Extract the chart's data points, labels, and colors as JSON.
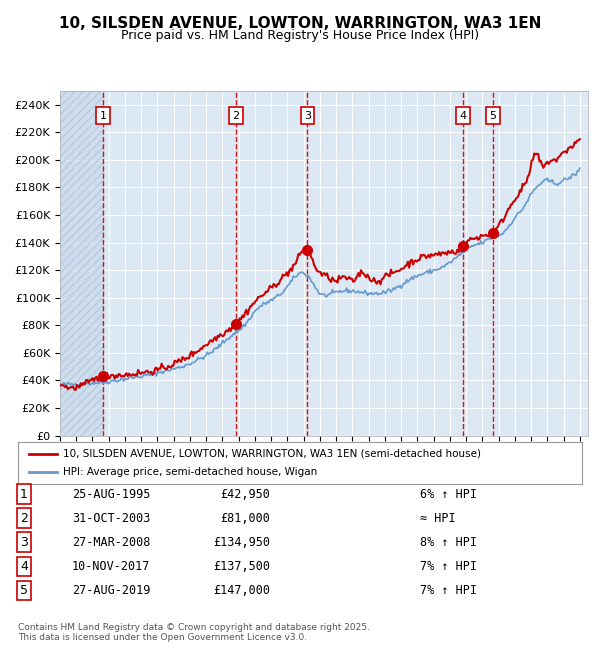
{
  "title": "10, SILSDEN AVENUE, LOWTON, WARRINGTON, WA3 1EN",
  "subtitle": "Price paid vs. HM Land Registry's House Price Index (HPI)",
  "background_color": "#dce9f5",
  "plot_bg_color": "#dce9f5",
  "hatch_color": "#c0d0e8",
  "grid_color": "#ffffff",
  "red_line_color": "#cc0000",
  "blue_line_color": "#6699cc",
  "sale_marker_color": "#cc0000",
  "dashed_line_color": "#cc0000",
  "transactions": [
    {
      "num": 1,
      "date": "1995-08-25",
      "price": 42950,
      "label": "25-AUG-1995",
      "pct": "6% ↑ HPI"
    },
    {
      "num": 2,
      "date": "2003-10-31",
      "price": 81000,
      "label": "31-OCT-2003",
      "pct": "≈ HPI"
    },
    {
      "num": 3,
      "date": "2008-03-27",
      "price": 134950,
      "label": "27-MAR-2008",
      "pct": "8% ↑ HPI"
    },
    {
      "num": 4,
      "date": "2017-11-10",
      "price": 137500,
      "label": "10-NOV-2017",
      "pct": "7% ↑ HPI"
    },
    {
      "num": 5,
      "date": "2019-08-27",
      "price": 147000,
      "label": "27-AUG-2019",
      "pct": "7% ↑ HPI"
    }
  ],
  "legend_line1": "10, SILSDEN AVENUE, LOWTON, WARRINGTON, WA3 1EN (semi-detached house)",
  "legend_line2": "HPI: Average price, semi-detached house, Wigan",
  "footer": "Contains HM Land Registry data © Crown copyright and database right 2025.\nThis data is licensed under the Open Government Licence v3.0.",
  "ylim": [
    0,
    240000
  ],
  "ytick_step": 20000,
  "xlabel_fontsize": 7,
  "ylabel_fontsize": 9,
  "title_fontsize": 11,
  "subtitle_fontsize": 9
}
